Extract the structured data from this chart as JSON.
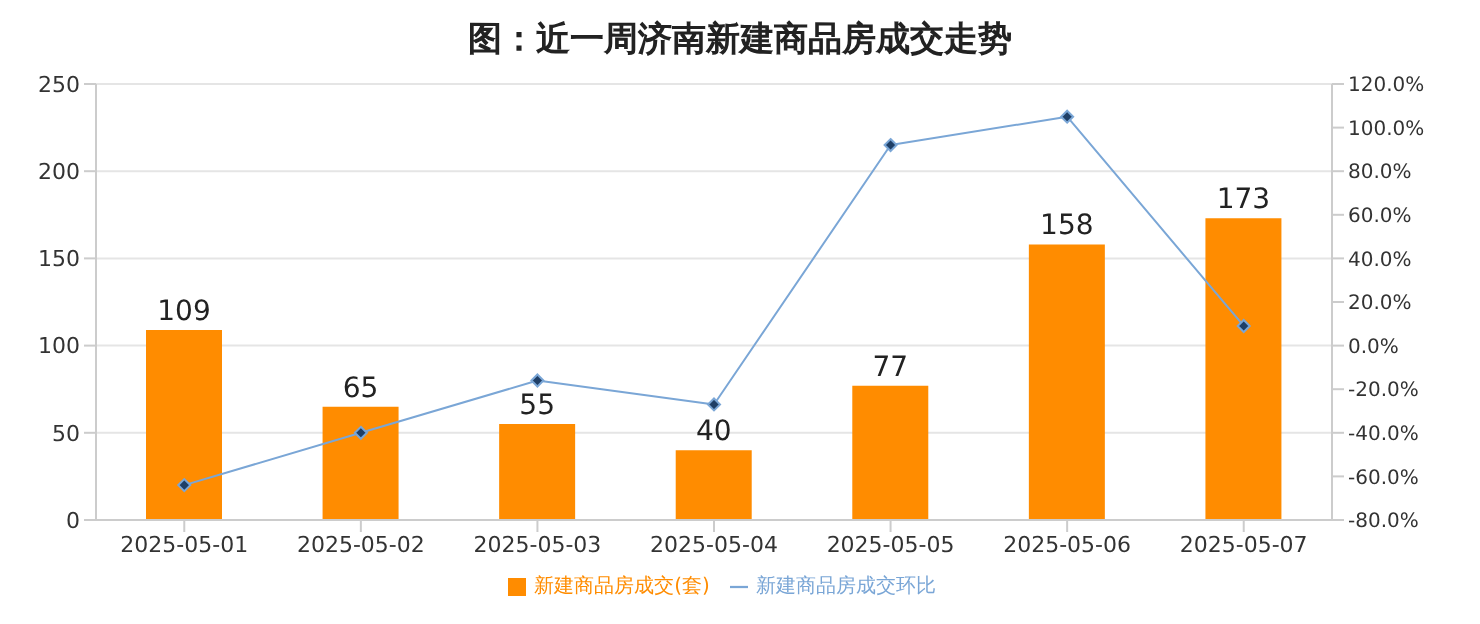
{
  "chart_data": {
    "type": "bar",
    "title": "图：近一周济南新建商品房成交走势",
    "categories": [
      "2025-05-01",
      "2025-05-02",
      "2025-05-03",
      "2025-05-04",
      "2025-05-05",
      "2025-05-06",
      "2025-05-07"
    ],
    "series": [
      {
        "name": "新建商品房成交(套)",
        "color": "#ff8c00",
        "values": [
          109,
          65,
          55,
          40,
          77,
          158,
          173
        ],
        "value_labels": [
          "109",
          "65",
          "55",
          "40",
          "77",
          "158",
          "173"
        ]
      },
      {
        "name": "新建商品房成交环比",
        "type": "line",
        "axis": "y2",
        "color": "#7aa6d6",
        "marker": "diamond",
        "values": [
          -64,
          -40,
          -16,
          -27,
          92,
          105,
          9
        ]
      }
    ],
    "ylim": [
      0,
      250
    ],
    "yticks": [
      0,
      50,
      100,
      150,
      200,
      250
    ],
    "y2lim": [
      -80,
      120
    ],
    "y2ticks": [
      {
        "value": -80,
        "label": "-80.0%"
      },
      {
        "value": -60,
        "label": "-60.0%"
      },
      {
        "value": -40,
        "label": "-40.0%"
      },
      {
        "value": -20,
        "label": "-20.0%"
      },
      {
        "value": 0,
        "label": "0.0%"
      },
      {
        "value": 20,
        "label": "20.0%"
      },
      {
        "value": 40,
        "label": "40.0%"
      },
      {
        "value": 60,
        "label": "60.0%"
      },
      {
        "value": 80,
        "label": "80.0%"
      },
      {
        "value": 100,
        "label": "100.0%"
      },
      {
        "value": 120,
        "label": "120.0%"
      }
    ],
    "grid": "y",
    "legend": "bottom"
  }
}
